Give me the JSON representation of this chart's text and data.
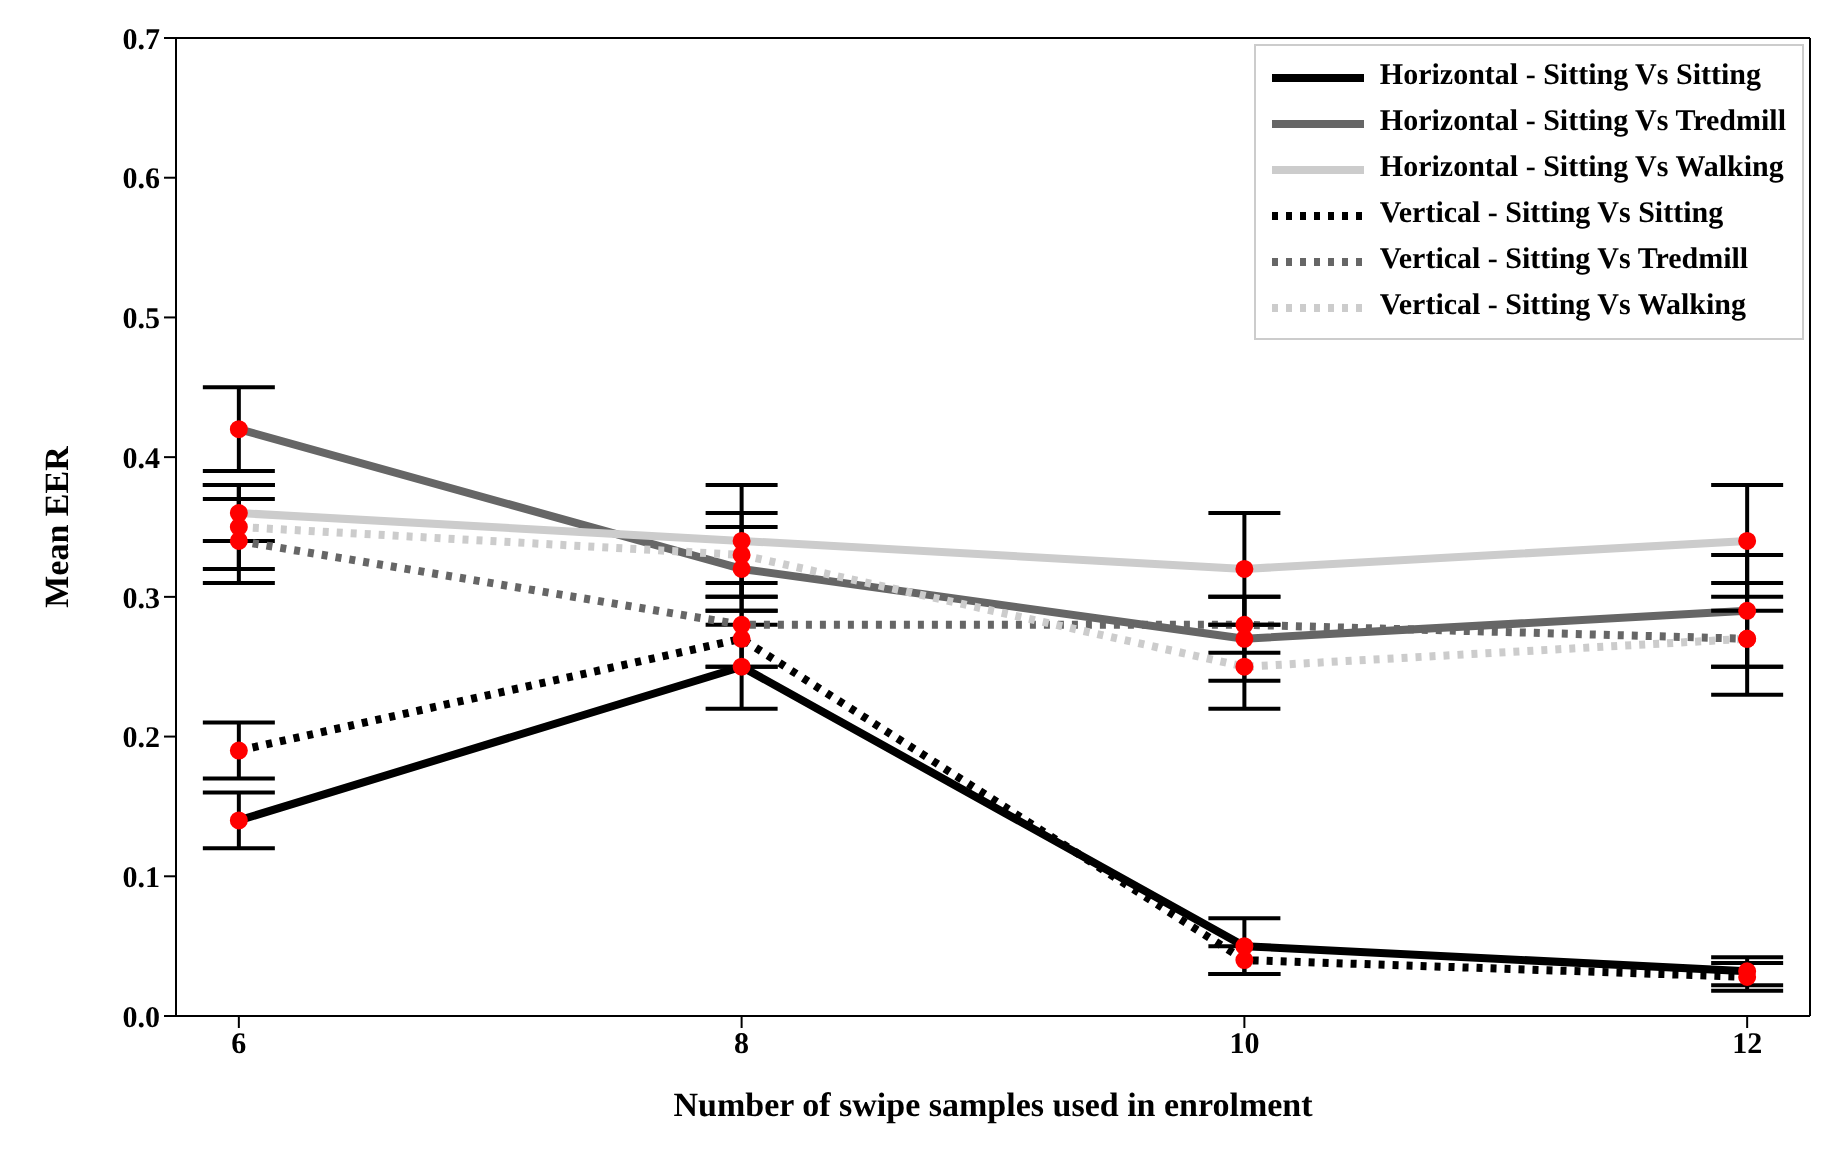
{
  "chart_data": {
    "type": "line",
    "xlabel": "Number of swipe samples used in enrolment",
    "ylabel": "Mean EER",
    "x": [
      6,
      8,
      10,
      12
    ],
    "series": [
      {
        "name": "Horizontal - Sitting Vs Sitting",
        "color": "#000000",
        "line_style": "solid",
        "values": [
          0.14,
          0.25,
          0.05,
          0.032
        ],
        "errors": [
          0.02,
          0.03,
          0.02,
          0.01
        ]
      },
      {
        "name": "Horizontal - Sitting Vs Tredmill",
        "color": "#666666",
        "line_style": "solid",
        "values": [
          0.42,
          0.32,
          0.27,
          0.29
        ],
        "errors": [
          0.03,
          0.03,
          0.03,
          0.04
        ]
      },
      {
        "name": "Horizontal - Sitting Vs Walking",
        "color": "#cccccc",
        "line_style": "solid",
        "values": [
          0.36,
          0.34,
          0.32,
          0.34
        ],
        "errors": [
          0.02,
          0.04,
          0.04,
          0.04
        ]
      },
      {
        "name": "Vertical - Sitting Vs Sitting",
        "color": "#000000",
        "line_style": "dotted",
        "values": [
          0.19,
          0.27,
          0.04,
          0.028
        ],
        "errors": [
          0.02,
          0.02,
          0.01,
          0.01
        ]
      },
      {
        "name": "Vertical - Sitting Vs Tredmill",
        "color": "#666666",
        "line_style": "dotted",
        "values": [
          0.34,
          0.28,
          0.28,
          0.27
        ],
        "errors": [
          0.03,
          0.03,
          0.02,
          0.02
        ]
      },
      {
        "name": "Vertical - Sitting Vs Walking",
        "color": "#cccccc",
        "line_style": "dotted",
        "values": [
          0.35,
          0.33,
          0.25,
          0.27
        ],
        "errors": [
          0.03,
          0.03,
          0.03,
          0.04
        ]
      }
    ],
    "xlim": [
      5.75,
      12.25
    ],
    "xticks": [
      6,
      8,
      10,
      12
    ],
    "ylim": [
      0,
      0.7
    ],
    "yticks": [
      {
        "value": 0,
        "label": "0.0"
      },
      {
        "value": 0.1,
        "label": "0.1"
      },
      {
        "value": 0.2,
        "label": "0.2"
      },
      {
        "value": 0.3,
        "label": "0.3"
      },
      {
        "value": 0.4,
        "label": "0.4"
      },
      {
        "value": 0.5,
        "label": "0.5"
      },
      {
        "value": 0.6,
        "label": "0.6"
      },
      {
        "value": 0.7,
        "label": "0.7"
      }
    ],
    "grid": false,
    "legend": "top right",
    "marker": "circle"
  }
}
